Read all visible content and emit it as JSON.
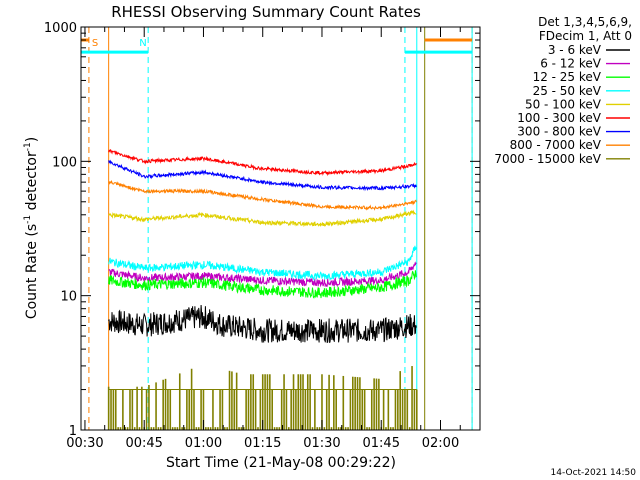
{
  "chart_data": {
    "type": "line",
    "title": "RHESSI Observing Summary Count Rates",
    "xlabel": "Start Time (21-May-08 00:29:22)",
    "ylabel": "Count Rate (s",
    "ylabel_sup": "-1",
    "ylabel_tail": " detector",
    "ylabel_close": ")",
    "y_scale": "log",
    "xlim": [
      "00:29",
      "02:10"
    ],
    "ylim": [
      1,
      1000
    ],
    "x_ticks": [
      "00:30",
      "00:45",
      "01:00",
      "01:15",
      "01:30",
      "01:45",
      "02:00"
    ],
    "y_ticks": [
      "1",
      "10",
      "100",
      "1000"
    ],
    "legend_header": [
      "Det 1,3,4,5,6,9,",
      "FDecim 1, Att 0"
    ],
    "legend_position": "right",
    "timestamp": "14-Oct-2021 14:50",
    "data_start": "00:36",
    "data_end": "01:54",
    "series": [
      {
        "name": "3 - 6 keV",
        "color": "#000000",
        "noise": 0.09,
        "points": [
          [
            "00:36",
            6.5
          ],
          [
            "00:45",
            6.0
          ],
          [
            "01:00",
            7.0
          ],
          [
            "01:05",
            6.0
          ],
          [
            "01:15",
            5.5
          ],
          [
            "01:30",
            5.5
          ],
          [
            "01:45",
            5.5
          ],
          [
            "01:52",
            6.0
          ]
        ]
      },
      {
        "name": "6 - 12 keV",
        "color": "#c000c0",
        "noise": 0.03,
        "points": [
          [
            "00:36",
            15
          ],
          [
            "00:45",
            13.5
          ],
          [
            "01:00",
            14
          ],
          [
            "01:15",
            13
          ],
          [
            "01:30",
            12.5
          ],
          [
            "01:45",
            13
          ],
          [
            "01:52",
            15
          ],
          [
            "01:54",
            18
          ]
        ]
      },
      {
        "name": "12 - 25 keV",
        "color": "#00ff00",
        "noise": 0.04,
        "points": [
          [
            "00:36",
            13
          ],
          [
            "00:45",
            12
          ],
          [
            "01:00",
            12.5
          ],
          [
            "01:15",
            11
          ],
          [
            "01:30",
            10.5
          ],
          [
            "01:45",
            11.5
          ],
          [
            "01:52",
            13
          ],
          [
            "01:54",
            15
          ]
        ]
      },
      {
        "name": "25 - 50 keV",
        "color": "#00ffff",
        "noise": 0.03,
        "points": [
          [
            "00:36",
            18
          ],
          [
            "00:45",
            16
          ],
          [
            "01:00",
            17
          ],
          [
            "01:15",
            15
          ],
          [
            "01:30",
            14
          ],
          [
            "01:45",
            15
          ],
          [
            "01:52",
            18
          ],
          [
            "01:54",
            24
          ]
        ]
      },
      {
        "name": "50 - 100 keV",
        "color": "#e0d000",
        "noise": 0.015,
        "points": [
          [
            "00:36",
            40
          ],
          [
            "00:45",
            37
          ],
          [
            "01:00",
            40
          ],
          [
            "01:15",
            35
          ],
          [
            "01:30",
            34
          ],
          [
            "01:45",
            37
          ],
          [
            "01:54",
            42
          ]
        ]
      },
      {
        "name": "100 - 300 keV",
        "color": "#ff0000",
        "noise": 0.012,
        "points": [
          [
            "00:36",
            120
          ],
          [
            "00:45",
            100
          ],
          [
            "01:00",
            105
          ],
          [
            "01:15",
            88
          ],
          [
            "01:30",
            82
          ],
          [
            "01:45",
            85
          ],
          [
            "01:54",
            95
          ]
        ]
      },
      {
        "name": "300 - 800 keV",
        "color": "#0000ff",
        "noise": 0.012,
        "points": [
          [
            "00:36",
            100
          ],
          [
            "00:45",
            77
          ],
          [
            "01:00",
            83
          ],
          [
            "01:15",
            70
          ],
          [
            "01:30",
            64
          ],
          [
            "01:45",
            63
          ],
          [
            "01:54",
            66
          ]
        ]
      },
      {
        "name": "800 - 7000 keV",
        "color": "#ff8000",
        "noise": 0.012,
        "points": [
          [
            "00:36",
            70
          ],
          [
            "00:45",
            60
          ],
          [
            "01:00",
            60
          ],
          [
            "01:15",
            52
          ],
          [
            "01:30",
            46
          ],
          [
            "01:45",
            45
          ],
          [
            "01:54",
            50
          ]
        ]
      },
      {
        "name": "7000 - 15000 keV",
        "color": "#808000",
        "noise": 0,
        "points": [
          [
            "00:36",
            1.5
          ],
          [
            "00:45",
            1.5
          ],
          [
            "01:00",
            2.5
          ],
          [
            "01:10",
            2.0
          ],
          [
            "01:30",
            2.0
          ],
          [
            "01:45",
            1.8
          ],
          [
            "01:54",
            2.5
          ]
        ]
      }
    ],
    "annotations": [
      {
        "label": "S",
        "color": "#ff8000",
        "time": "00:31"
      },
      {
        "label": "N",
        "color": "#00ffff",
        "time": "00:43"
      }
    ],
    "vertical_markers": [
      {
        "time": "00:29",
        "color": "#00ffff",
        "style": "solid"
      },
      {
        "time": "00:36",
        "color": "#ff8000",
        "style": "solid"
      },
      {
        "time": "00:46",
        "color": "#00ffff",
        "style": "dashed"
      },
      {
        "time": "00:31",
        "color": "#ff8000",
        "style": "dashed"
      },
      {
        "time": "01:51",
        "color": "#00ffff",
        "style": "dashed"
      },
      {
        "time": "01:54",
        "color": "#00ffff",
        "style": "solid"
      },
      {
        "time": "01:56",
        "color": "#808000",
        "style": "solid"
      },
      {
        "time": "02:08",
        "color": "#ff8000",
        "style": "dashed"
      },
      {
        "time": "02:08",
        "color": "#00ffff",
        "style": "solid"
      }
    ],
    "state_bars": [
      {
        "name": "S",
        "color": "#ff8000",
        "value": 800,
        "segments": [
          [
            "00:29",
            "00:31"
          ],
          [
            "01:56",
            "02:08"
          ]
        ]
      },
      {
        "name": "N",
        "color": "#00ffff",
        "value": 650,
        "segments": [
          [
            "00:29",
            "00:46"
          ],
          [
            "01:51",
            "02:08"
          ]
        ]
      }
    ]
  }
}
